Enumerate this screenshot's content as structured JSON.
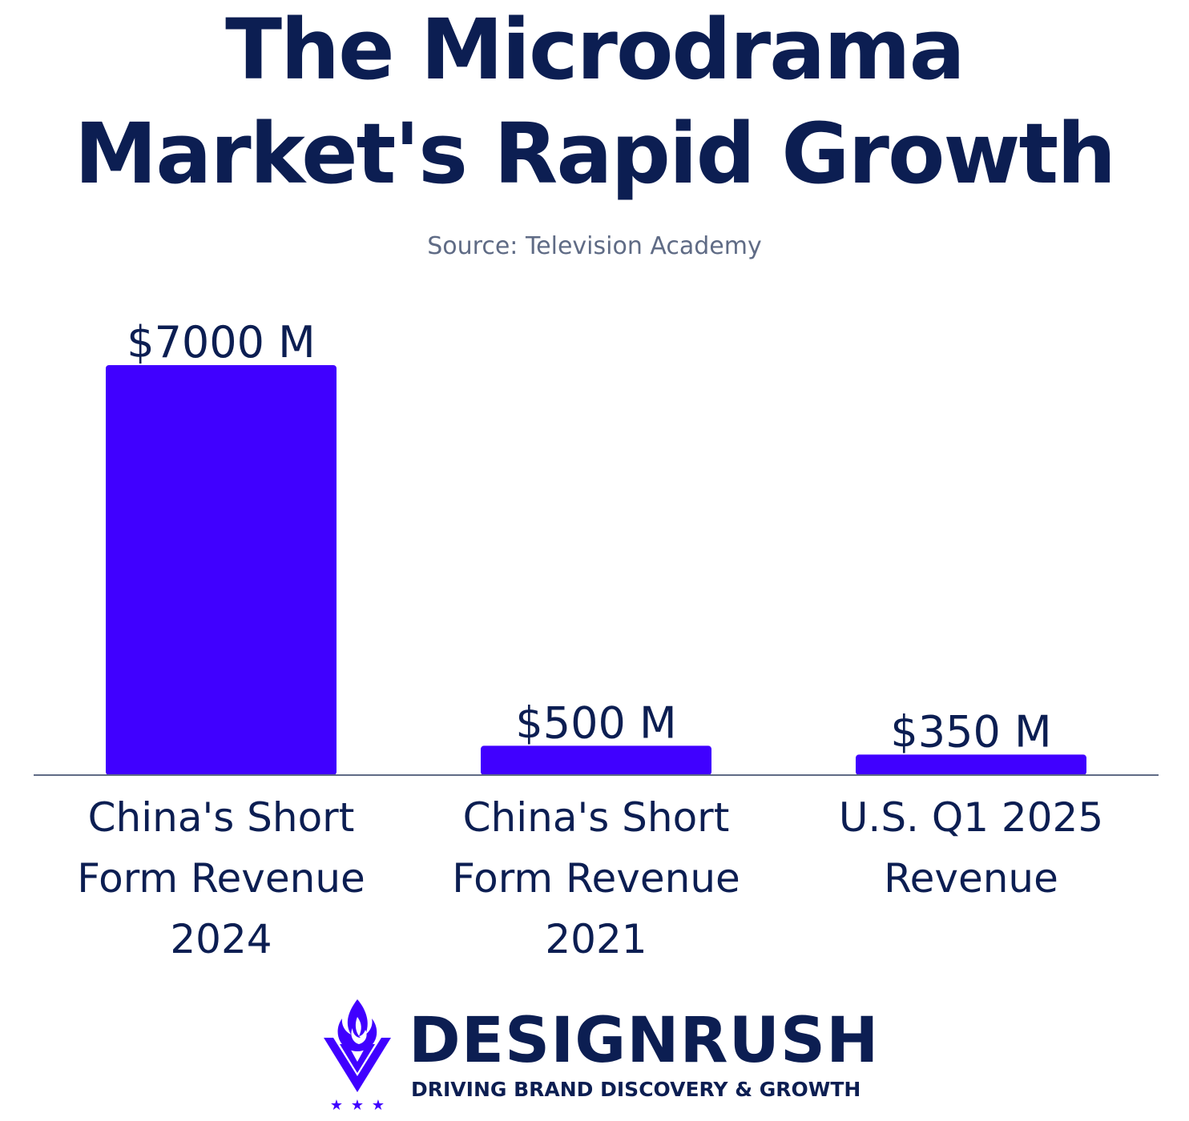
{
  "header": {
    "title_line1": "The Microdrama",
    "title_line2": "Market's Rapid Growth",
    "source": "Source: Television Academy"
  },
  "chart_data": {
    "type": "bar",
    "title": "The Microdrama Market's Rapid Growth",
    "subtitle": "Source: Television Academy",
    "categories": [
      [
        "China's Short",
        "Form Revenue",
        "2024"
      ],
      [
        "China's Short",
        "Form Revenue",
        "2021"
      ],
      [
        "U.S. Q1 2025",
        "Revenue"
      ]
    ],
    "values": [
      7000,
      500,
      350
    ],
    "value_labels": [
      "$7000 M",
      "$500 M",
      "$350 M"
    ],
    "unit": "M",
    "ylim": [
      0,
      7000
    ],
    "grid": false,
    "legend": "none",
    "bar_color": "#4000ff",
    "axis_color": "#5f6b85",
    "text_color": "#0c1e52"
  },
  "brand": {
    "name": "DESIGNRUSH",
    "tagline": "DRIVING BRAND DISCOVERY & GROWTH",
    "icon": "designrush-flame-v-icon",
    "accent": "#4000ff"
  }
}
